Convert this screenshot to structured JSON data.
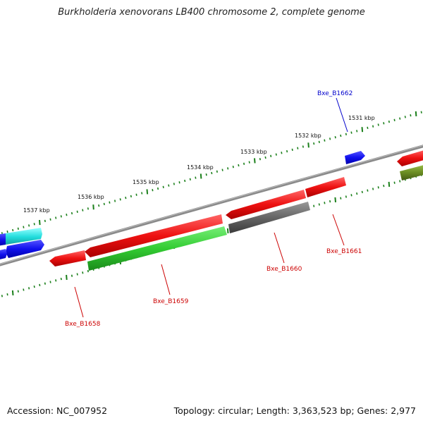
{
  "title": "Burkholderia xenovorans LB400 chromosome 2, complete genome",
  "footer": {
    "accession": "Accession: NC_007952",
    "summary": "Topology: circular; Length: 3,363,523 bp; Genes: 2,977"
  },
  "colors": {
    "forward_red": "#ee1111",
    "reverse_green": "#33cc33",
    "gray_gene": "#666666",
    "blue_gene": "#1111ee",
    "cyan_gene": "#22dddd",
    "olive_gene": "#6b8e23",
    "tick_green": "#1a7f1a",
    "backbone": "#888888",
    "label_red": "#cc0000",
    "label_blue": "#0000cc"
  },
  "kbp_labels": [
    "1531 kbp",
    "1532 kbp",
    "1533 kbp",
    "1534 kbp",
    "1535 kbp",
    "1536 kbp",
    "1537 kbp"
  ],
  "gene_labels": [
    "Bxe_B1662",
    "Bxe_B1661",
    "Bxe_B1660",
    "Bxe_B1659",
    "Bxe_B1658"
  ]
}
